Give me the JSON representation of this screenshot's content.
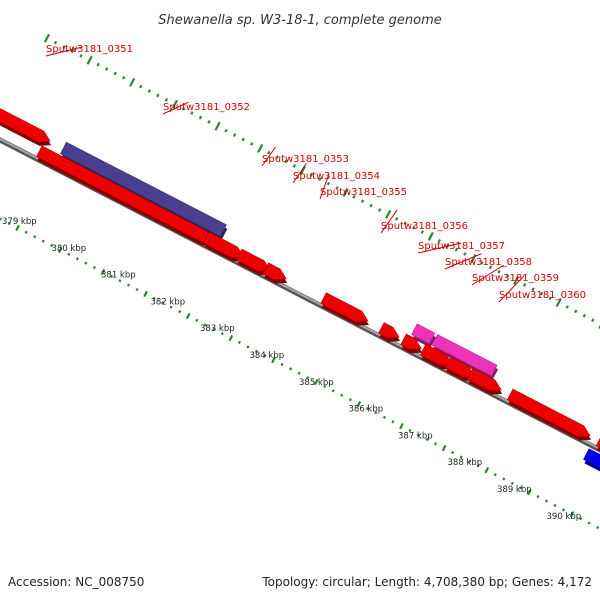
{
  "title": "Shewanella sp. W3-18-1, complete genome",
  "footer": {
    "accession": "Accession: NC_008750",
    "summary": "Topology: circular; Length: 4,708,380 bp; Genes: 4,172"
  },
  "colors": {
    "gene_default": "#ee0000",
    "gene_highlight_dark": "#4a3f8f",
    "gene_highlight_pink": "#ee33bb",
    "gene_blue": "#0000ee",
    "backbone": "#8a8a8a",
    "tick_marks": "#2a8a2a",
    "label_text": "#cc0000"
  },
  "gene_labels": [
    "Sputw3181_0351",
    "Sputw3181_0352",
    "Sputw3181_0353",
    "Sputw3181_0354",
    "Sputw3181_0355",
    "Sputw3181_0356",
    "Sputw3181_0357",
    "Sputw3181_0358",
    "Sputw3181_0359",
    "Sputw3181_0360"
  ],
  "scale_labels": [
    "379 kbp",
    "380 kbp",
    "381 kbp",
    "382 kbp",
    "383 kbp",
    "384 kbp",
    "385 kbp",
    "386 kbp",
    "387 kbp",
    "388 kbp",
    "389 kbp",
    "390 kbp"
  ]
}
